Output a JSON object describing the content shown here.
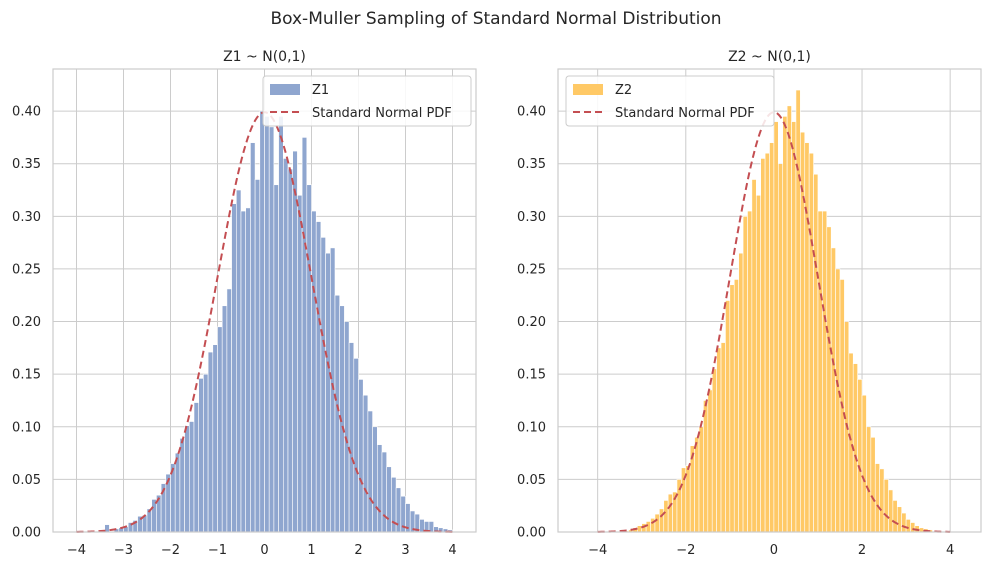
{
  "suptitle": "Box-Muller Sampling of Standard Normal Distribution",
  "chart_data": [
    {
      "type": "bar",
      "title": "Z1 ~ N(0,1)",
      "xlabel": "",
      "ylabel": "",
      "xlim": [
        -4.5,
        4.5
      ],
      "ylim": [
        0,
        0.44
      ],
      "xticks": [
        -4,
        -3,
        -2,
        -1,
        0,
        1,
        2,
        3,
        4
      ],
      "xtick_labels": [
        "−4",
        "−3",
        "−2",
        "−1",
        "0",
        "1",
        "2",
        "3",
        "4"
      ],
      "yticks": [
        0.0,
        0.05,
        0.1,
        0.15,
        0.2,
        0.25,
        0.3,
        0.35,
        0.4
      ],
      "ytick_labels": [
        "0.00",
        "0.05",
        "0.10",
        "0.15",
        "0.20",
        "0.25",
        "0.30",
        "0.35",
        "0.40"
      ],
      "grid": true,
      "legend_position": "top-right",
      "bar_color": "#8fa6cf",
      "pdf_color": "#c44e52",
      "histogram": {
        "name": "Z1",
        "bin_start": -3.4,
        "bin_width": 0.1,
        "values": [
          0.007,
          0.0,
          0.003,
          0.004,
          0.005,
          0.009,
          0.011,
          0.015,
          0.016,
          0.022,
          0.031,
          0.035,
          0.046,
          0.055,
          0.065,
          0.075,
          0.089,
          0.101,
          0.105,
          0.123,
          0.146,
          0.15,
          0.171,
          0.178,
          0.195,
          0.215,
          0.231,
          0.312,
          0.325,
          0.305,
          0.308,
          0.37,
          0.335,
          0.4,
          0.395,
          0.385,
          0.33,
          0.395,
          0.355,
          0.345,
          0.362,
          0.32,
          0.375,
          0.33,
          0.305,
          0.295,
          0.28,
          0.265,
          0.27,
          0.225,
          0.215,
          0.2,
          0.18,
          0.165,
          0.145,
          0.13,
          0.115,
          0.1,
          0.083,
          0.076,
          0.062,
          0.052,
          0.042,
          0.034,
          0.027,
          0.02,
          0.017,
          0.012,
          0.01,
          0.01,
          0.005,
          0.004,
          0.003,
          0.002
        ]
      },
      "pdf_label": "Standard Normal PDF",
      "pdf_range": [
        -4,
        4
      ]
    },
    {
      "type": "bar",
      "title": "Z2 ~ N(0,1)",
      "xlabel": "",
      "ylabel": "",
      "xlim": [
        -4.9,
        4.7
      ],
      "ylim": [
        0,
        0.44
      ],
      "xticks": [
        -4,
        -2,
        0,
        2,
        4
      ],
      "xtick_labels": [
        "−4",
        "−2",
        "0",
        "2",
        "4"
      ],
      "yticks": [
        0.0,
        0.05,
        0.1,
        0.15,
        0.2,
        0.25,
        0.3,
        0.35,
        0.4
      ],
      "ytick_labels": [
        "0.00",
        "0.05",
        "0.10",
        "0.15",
        "0.20",
        "0.25",
        "0.30",
        "0.35",
        "0.40"
      ],
      "grid": true,
      "legend_position": "top-left",
      "bar_color": "#ffc966",
      "pdf_color": "#c44e52",
      "histogram": {
        "name": "Z2",
        "bin_start": -3.4,
        "bin_width": 0.1,
        "values": [
          0.001,
          0.002,
          0.004,
          0.006,
          0.008,
          0.01,
          0.013,
          0.017,
          0.022,
          0.03,
          0.036,
          0.038,
          0.05,
          0.061,
          0.063,
          0.082,
          0.09,
          0.1,
          0.125,
          0.135,
          0.155,
          0.175,
          0.18,
          0.22,
          0.235,
          0.24,
          0.265,
          0.3,
          0.305,
          0.335,
          0.32,
          0.355,
          0.36,
          0.37,
          0.39,
          0.35,
          0.395,
          0.405,
          0.39,
          0.42,
          0.38,
          0.37,
          0.36,
          0.34,
          0.305,
          0.305,
          0.29,
          0.27,
          0.25,
          0.24,
          0.2,
          0.17,
          0.16,
          0.145,
          0.13,
          0.1,
          0.09,
          0.065,
          0.06,
          0.05,
          0.04,
          0.03,
          0.024,
          0.018,
          0.012,
          0.009,
          0.006,
          0.004,
          0.003,
          0.002
        ]
      },
      "pdf_label": "Standard Normal PDF",
      "pdf_range": [
        -4,
        4
      ]
    }
  ]
}
